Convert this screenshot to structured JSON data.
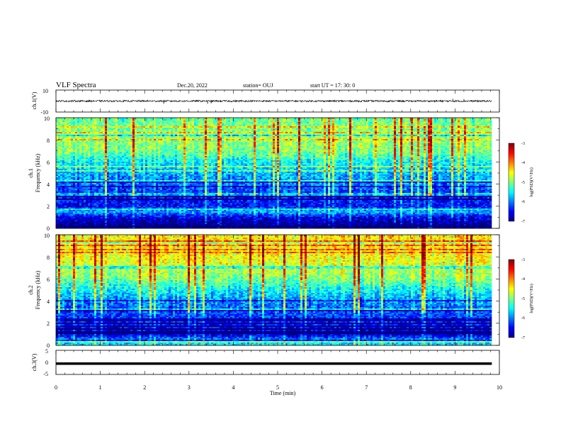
{
  "header": {
    "title": "VLF Spectra",
    "date": "Dec.20, 2022",
    "station": "station= OUJ",
    "start": "start  UT  =   17: 30: 0"
  },
  "chart_data": [
    {
      "type": "line",
      "panel": "ch1-waveform",
      "ylabel": "ch.1(V)",
      "ylim": [
        -10,
        10
      ],
      "yticks": [
        "10",
        "-10"
      ],
      "x_range_min": [
        0,
        9.83
      ],
      "baseline_v": 0.0,
      "noise_amplitude_v": 0.8,
      "spikes": [
        {
          "t_min": 2.43,
          "v": -2.5
        },
        {
          "t_min": 3.42,
          "v": -2.5
        },
        {
          "t_min": 3.5,
          "v": -2.0
        },
        {
          "t_min": 8.95,
          "v": 2.0
        },
        {
          "t_min": 9.2,
          "v": 1.8
        }
      ]
    },
    {
      "type": "heatmap",
      "panel": "ch1-spectrogram",
      "ylabel_lines": [
        "ch.1",
        "Frequency  (kHz)"
      ],
      "ylim": [
        0,
        10
      ],
      "yticks": [
        "0",
        "2",
        "4",
        "6",
        "8",
        "10"
      ],
      "x_range_min": [
        0,
        9.83
      ],
      "colorbar": {
        "label": "log(PSD)(V²/Hz)",
        "range": [
          -7,
          -3
        ],
        "ticks": [
          "-3",
          "-4",
          "-5",
          "-6",
          "-7"
        ]
      },
      "mean_profile": [
        {
          "f_khz": 0.3,
          "log_psd": -7.0
        },
        {
          "f_khz": 1.0,
          "log_psd": -6.6
        },
        {
          "f_khz": 1.5,
          "log_psd": -5.8
        },
        {
          "f_khz": 2.0,
          "log_psd": -6.5
        },
        {
          "f_khz": 3.0,
          "log_psd": -6.4
        },
        {
          "f_khz": 4.0,
          "log_psd": -6.0
        },
        {
          "f_khz": 5.0,
          "log_psd": -5.8
        },
        {
          "f_khz": 6.0,
          "log_psd": -5.5
        },
        {
          "f_khz": 7.0,
          "log_psd": -5.0
        },
        {
          "f_khz": 8.0,
          "log_psd": -4.9
        },
        {
          "f_khz": 10.0,
          "log_psd": -5.1
        }
      ]
    },
    {
      "type": "heatmap",
      "panel": "ch2-spectrogram",
      "ylabel_lines": [
        "ch.2",
        "Frequency  (kHz)"
      ],
      "ylim": [
        0,
        10
      ],
      "yticks": [
        "0",
        "2",
        "4",
        "6",
        "8",
        "10"
      ],
      "x_range_min": [
        0,
        9.83
      ],
      "colorbar": {
        "label": "log(PSD)(V²/Hz)",
        "range": [
          -7,
          -3
        ],
        "ticks": [
          "-3",
          "-4",
          "-5",
          "-6",
          "-7"
        ]
      },
      "mean_profile": [
        {
          "f_khz": 0.3,
          "log_psd": -5.6
        },
        {
          "f_khz": 1.0,
          "log_psd": -6.7
        },
        {
          "f_khz": 2.0,
          "log_psd": -6.4
        },
        {
          "f_khz": 3.0,
          "log_psd": -6.2
        },
        {
          "f_khz": 4.0,
          "log_psd": -5.9
        },
        {
          "f_khz": 5.0,
          "log_psd": -5.5
        },
        {
          "f_khz": 6.0,
          "log_psd": -5.0
        },
        {
          "f_khz": 7.0,
          "log_psd": -4.7
        },
        {
          "f_khz": 8.0,
          "log_psd": -4.5
        },
        {
          "f_khz": 10.0,
          "log_psd": -4.4
        }
      ]
    },
    {
      "type": "line",
      "panel": "ch3-waveform",
      "ylabel": "ch.3(V)",
      "ylim": [
        -5,
        5
      ],
      "yticks": [
        "5",
        "0",
        "-5"
      ],
      "xlabel": "Time  (min)",
      "xlim": [
        0,
        10
      ],
      "xticks": [
        "0",
        "1",
        "2",
        "3",
        "4",
        "5",
        "6",
        "7",
        "8",
        "9",
        "10"
      ],
      "x_range_min": [
        0,
        9.83
      ],
      "baseline_v": -0.5
    }
  ]
}
